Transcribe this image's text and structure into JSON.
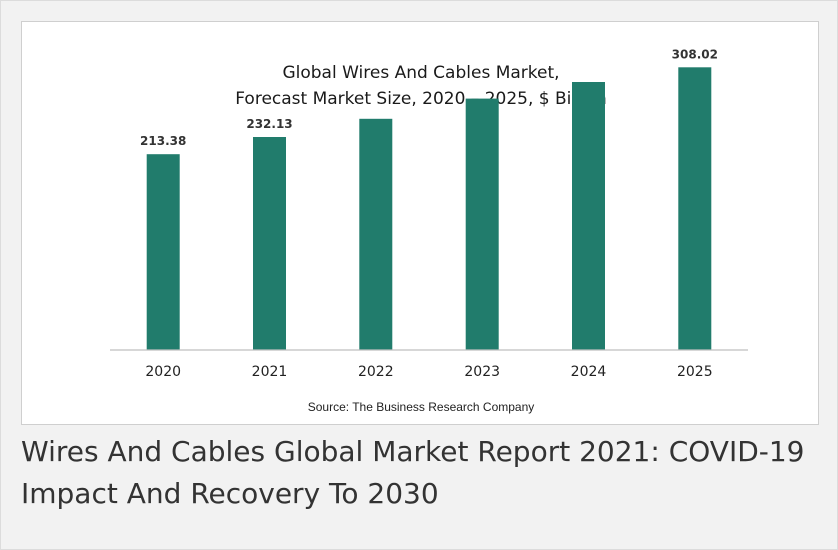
{
  "caption": "Wires And Cables Global Market Report 2021: COVID-19 Impact And Recovery To 2030",
  "source": "Source: The Business Research Company",
  "colors": {
    "bar": "#217c6c",
    "axis": "#bfbfbf"
  },
  "chart_data": {
    "type": "bar",
    "title": [
      "Global Wires And Cables Market,",
      "Forecast Market Size, 2020 – 2025, $ Billion"
    ],
    "xlabel": "",
    "ylabel": "",
    "categories": [
      "2020",
      "2021",
      "2022",
      "2023",
      "2024",
      "2025"
    ],
    "values": [
      213.38,
      232.13,
      252.0,
      274.0,
      292.0,
      308.02
    ],
    "data_labels": [
      "213.38",
      "232.13",
      "",
      "",
      "",
      "308.02"
    ],
    "ylim": [
      0,
      340
    ],
    "grid": false,
    "legend": "none"
  }
}
